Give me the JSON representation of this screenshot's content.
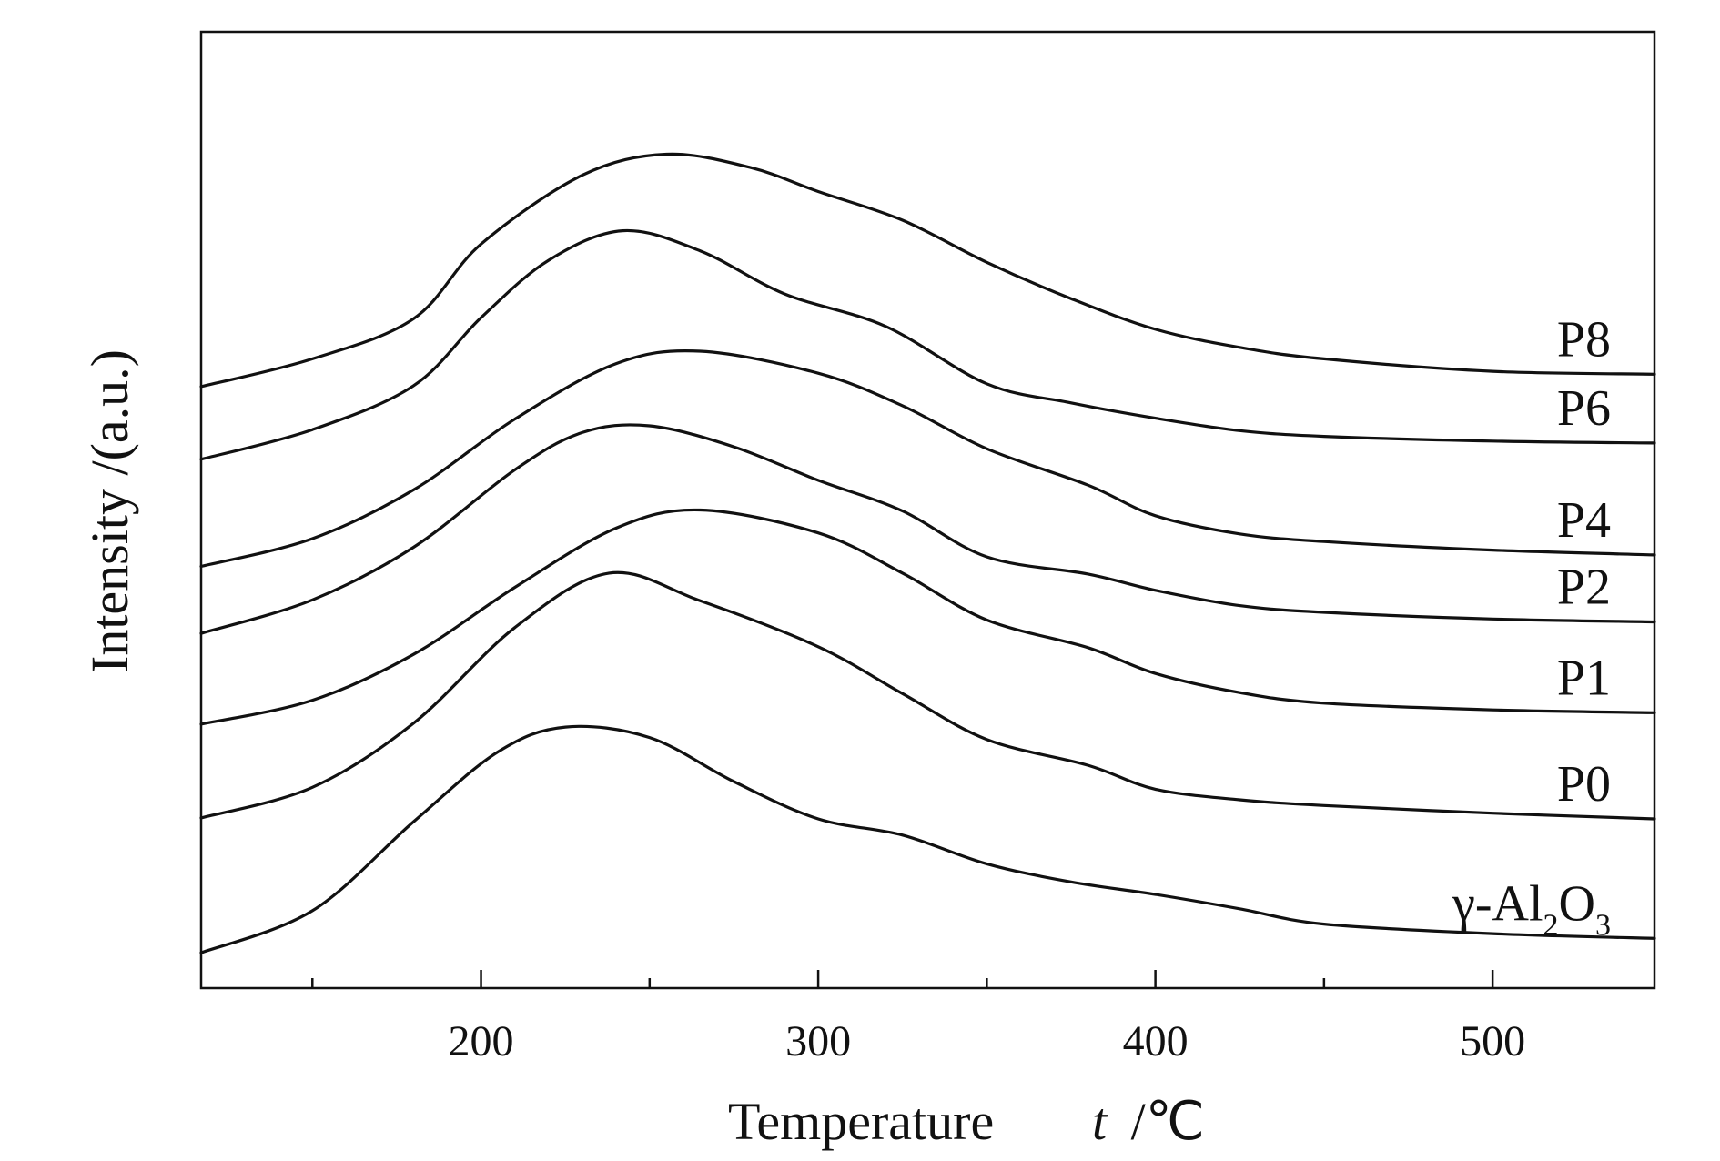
{
  "chart_data": {
    "type": "line",
    "xlabel": {
      "text": "Temperature",
      "var": "t",
      "unit": "/℃"
    },
    "ylabel": "Intensity /(a.u.)",
    "xlim": [
      117,
      548
    ],
    "x_ticks_major": [
      200,
      300,
      400,
      500
    ],
    "x_ticks_minor": [
      150,
      250,
      350,
      450
    ],
    "grid": false,
    "legend": "labels at right end of each curve",
    "series": [
      {
        "name": "P8",
        "x": [
          117,
          150,
          180,
          200,
          230,
          255,
          280,
          300,
          325,
          350,
          375,
          400,
          425,
          450,
          500,
          548
        ],
        "y": [
          0.629,
          0.658,
          0.7,
          0.778,
          0.85,
          0.872,
          0.858,
          0.833,
          0.803,
          0.759,
          0.721,
          0.689,
          0.67,
          0.658,
          0.645,
          0.642
        ]
      },
      {
        "name": "P6",
        "x": [
          117,
          150,
          180,
          200,
          220,
          242,
          265,
          290,
          320,
          350,
          375,
          400,
          425,
          450,
          500,
          548
        ],
        "y": [
          0.553,
          0.584,
          0.63,
          0.701,
          0.761,
          0.792,
          0.771,
          0.726,
          0.692,
          0.632,
          0.612,
          0.596,
          0.583,
          0.577,
          0.572,
          0.57
        ]
      },
      {
        "name": "P4",
        "x": [
          117,
          150,
          180,
          210,
          240,
          265,
          300,
          325,
          350,
          380,
          400,
          425,
          450,
          500,
          548
        ],
        "y": [
          0.441,
          0.47,
          0.521,
          0.595,
          0.653,
          0.666,
          0.643,
          0.609,
          0.564,
          0.526,
          0.494,
          0.475,
          0.467,
          0.458,
          0.453
        ]
      },
      {
        "name": "P2",
        "x": [
          117,
          150,
          180,
          210,
          230,
          250,
          275,
          300,
          325,
          350,
          380,
          400,
          425,
          450,
          500,
          548
        ],
        "y": [
          0.371,
          0.406,
          0.461,
          0.542,
          0.581,
          0.588,
          0.566,
          0.531,
          0.499,
          0.451,
          0.433,
          0.416,
          0.4,
          0.393,
          0.386,
          0.383
        ]
      },
      {
        "name": "P1",
        "x": [
          117,
          150,
          180,
          210,
          240,
          265,
          300,
          325,
          350,
          380,
          400,
          425,
          450,
          500,
          548
        ],
        "y": [
          0.276,
          0.301,
          0.349,
          0.419,
          0.481,
          0.5,
          0.476,
          0.434,
          0.385,
          0.356,
          0.329,
          0.309,
          0.298,
          0.291,
          0.288
        ]
      },
      {
        "name": "P0",
        "x": [
          117,
          150,
          180,
          210,
          238,
          265,
          300,
          325,
          350,
          380,
          400,
          425,
          450,
          500,
          548
        ],
        "y": [
          0.178,
          0.21,
          0.277,
          0.377,
          0.434,
          0.405,
          0.357,
          0.308,
          0.26,
          0.233,
          0.208,
          0.197,
          0.191,
          0.183,
          0.177
        ]
      },
      {
        "name": "γ-Al2O3",
        "x": [
          117,
          150,
          180,
          205,
          225,
          250,
          275,
          300,
          325,
          350,
          375,
          400,
          425,
          450,
          500,
          548
        ],
        "y": [
          0.037,
          0.081,
          0.174,
          0.247,
          0.273,
          0.262,
          0.216,
          0.177,
          0.16,
          0.13,
          0.111,
          0.098,
          0.083,
          0.067,
          0.057,
          0.052
        ]
      }
    ]
  }
}
